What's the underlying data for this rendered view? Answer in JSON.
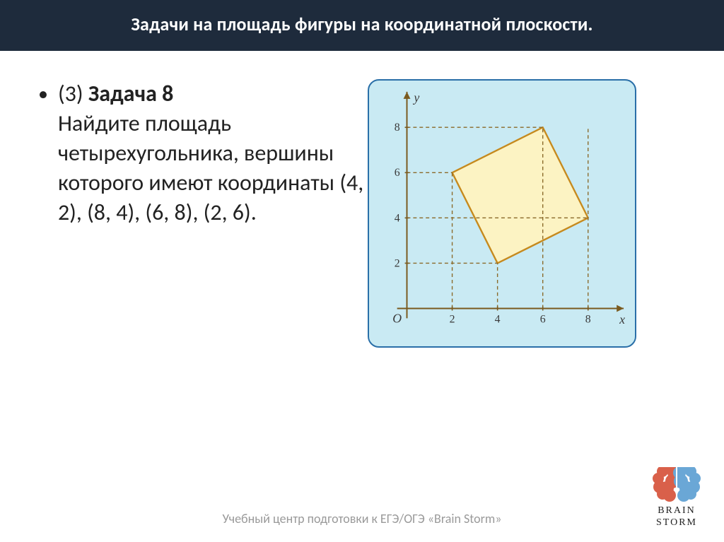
{
  "header": {
    "title": "Задачи на площадь фигуры на координатной плоскости."
  },
  "problem": {
    "prefix": "(3) ",
    "title": "Задача 8",
    "body": "Найдите площадь четырехугольника, вершины которого имеют координаты (4, 2), (8, 4), (6, 8), (2, 6)."
  },
  "chart": {
    "type": "coordinate-plot",
    "background_color": "#c9eaf3",
    "frame_border_color": "#2a6fa8",
    "plot_bg": "#c9eaf3",
    "axis_color": "#7a5a1e",
    "axis_width": 2,
    "dash_color": "#8a6a2a",
    "dash_pattern": "5,4",
    "origin_label": "O",
    "x_label": "x",
    "y_label": "y",
    "label_color": "#3a3a3a",
    "label_font_style": "italic",
    "label_fontsize": 18,
    "tick_fontsize": 16,
    "tick_color": "#3a3a3a",
    "x_ticks": [
      2,
      4,
      6,
      8
    ],
    "y_ticks": [
      2,
      4,
      6,
      8
    ],
    "x_range": [
      0,
      9.2
    ],
    "y_range": [
      0,
      9.2
    ],
    "polygon": {
      "fill": "#fcf3c3",
      "stroke": "#c68a1e",
      "stroke_width": 2.4,
      "points": [
        [
          4,
          2
        ],
        [
          8,
          4
        ],
        [
          6,
          8
        ],
        [
          2,
          6
        ]
      ]
    },
    "guide_lines_v": [
      2,
      4,
      6,
      8
    ],
    "guide_lines_h": [
      2,
      4,
      6,
      8
    ],
    "guide_extra": [
      {
        "type": "v",
        "x": 8,
        "from": 0,
        "to": 8
      },
      {
        "type": "h",
        "y": 8,
        "from": 0,
        "to": 6
      },
      {
        "type": "v",
        "x": 6,
        "from": 0,
        "to": 8
      },
      {
        "type": "h",
        "y": 2,
        "from": 0,
        "to": 4
      },
      {
        "type": "h",
        "y": 4,
        "from": 0,
        "to": 8
      },
      {
        "type": "h",
        "y": 6,
        "from": 0,
        "to": 2
      },
      {
        "type": "v",
        "x": 2,
        "from": 0,
        "to": 6
      },
      {
        "type": "v",
        "x": 4,
        "from": 0,
        "to": 2
      }
    ]
  },
  "footer": {
    "text": "Учебный центр подготовки к ЕГЭ/ОГЭ «Brain Storm»"
  },
  "logo": {
    "line1": "BRAIN",
    "line2": "STORM",
    "left_color": "#d9604a",
    "right_color": "#6aa7d6"
  }
}
